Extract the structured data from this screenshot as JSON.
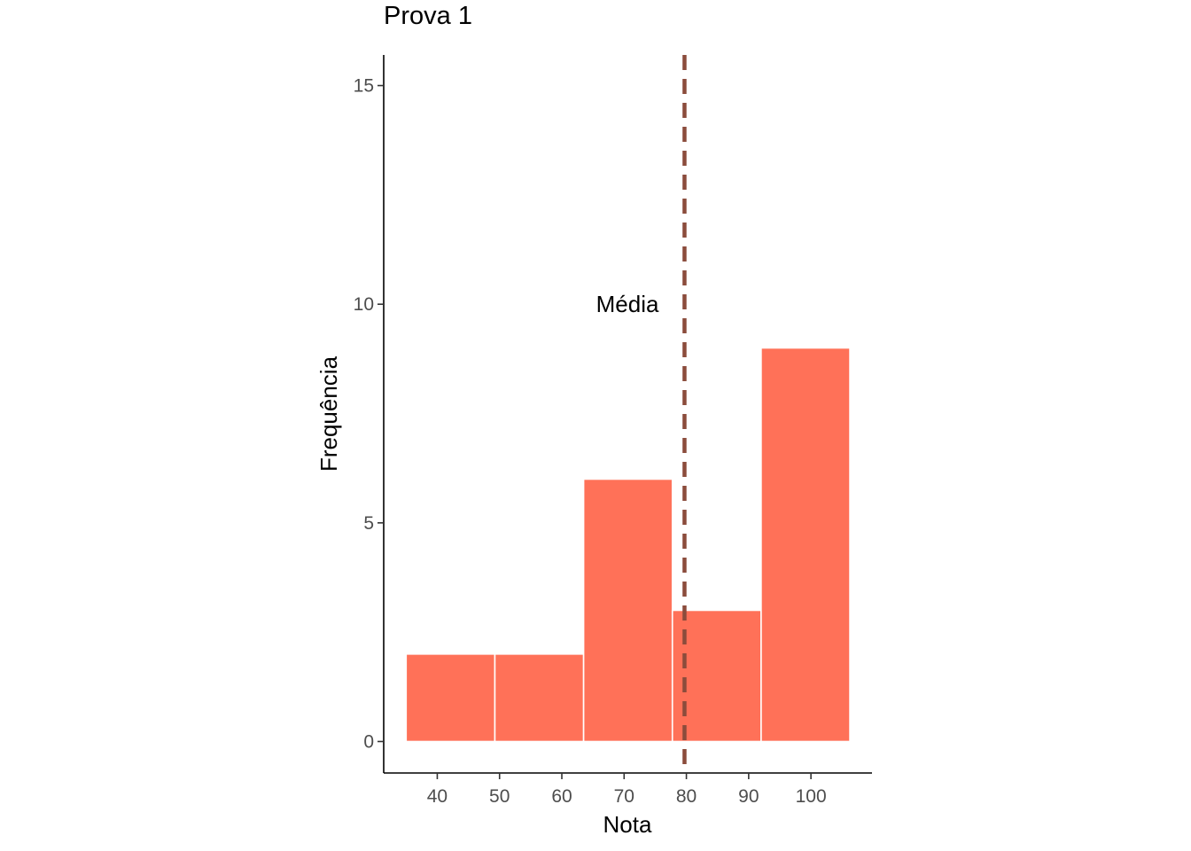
{
  "chart_data": {
    "type": "bar",
    "title": "Prova 1",
    "xlabel": "Nota",
    "ylabel": "Frequência",
    "bins": [
      {
        "from": 35,
        "to": 49.25,
        "count": 2
      },
      {
        "from": 49.25,
        "to": 63.5,
        "count": 2
      },
      {
        "from": 63.5,
        "to": 77.75,
        "count": 6
      },
      {
        "from": 77.75,
        "to": 92,
        "count": 3
      },
      {
        "from": 92,
        "to": 106.25,
        "count": 9
      }
    ],
    "xticks": [
      40,
      50,
      60,
      70,
      80,
      90,
      100
    ],
    "yticks": [
      0,
      5,
      10,
      15
    ],
    "xlim": [
      31.4,
      109.8
    ],
    "ylim": [
      -0.72,
      15.7
    ],
    "mean_line": {
      "x": 79.7,
      "label": "Média",
      "label_y": 10
    },
    "grid": false,
    "colors": {
      "bar": "#ff7158",
      "bar_edge": "#ffffff",
      "mean_line": "#8b4c3c"
    }
  }
}
